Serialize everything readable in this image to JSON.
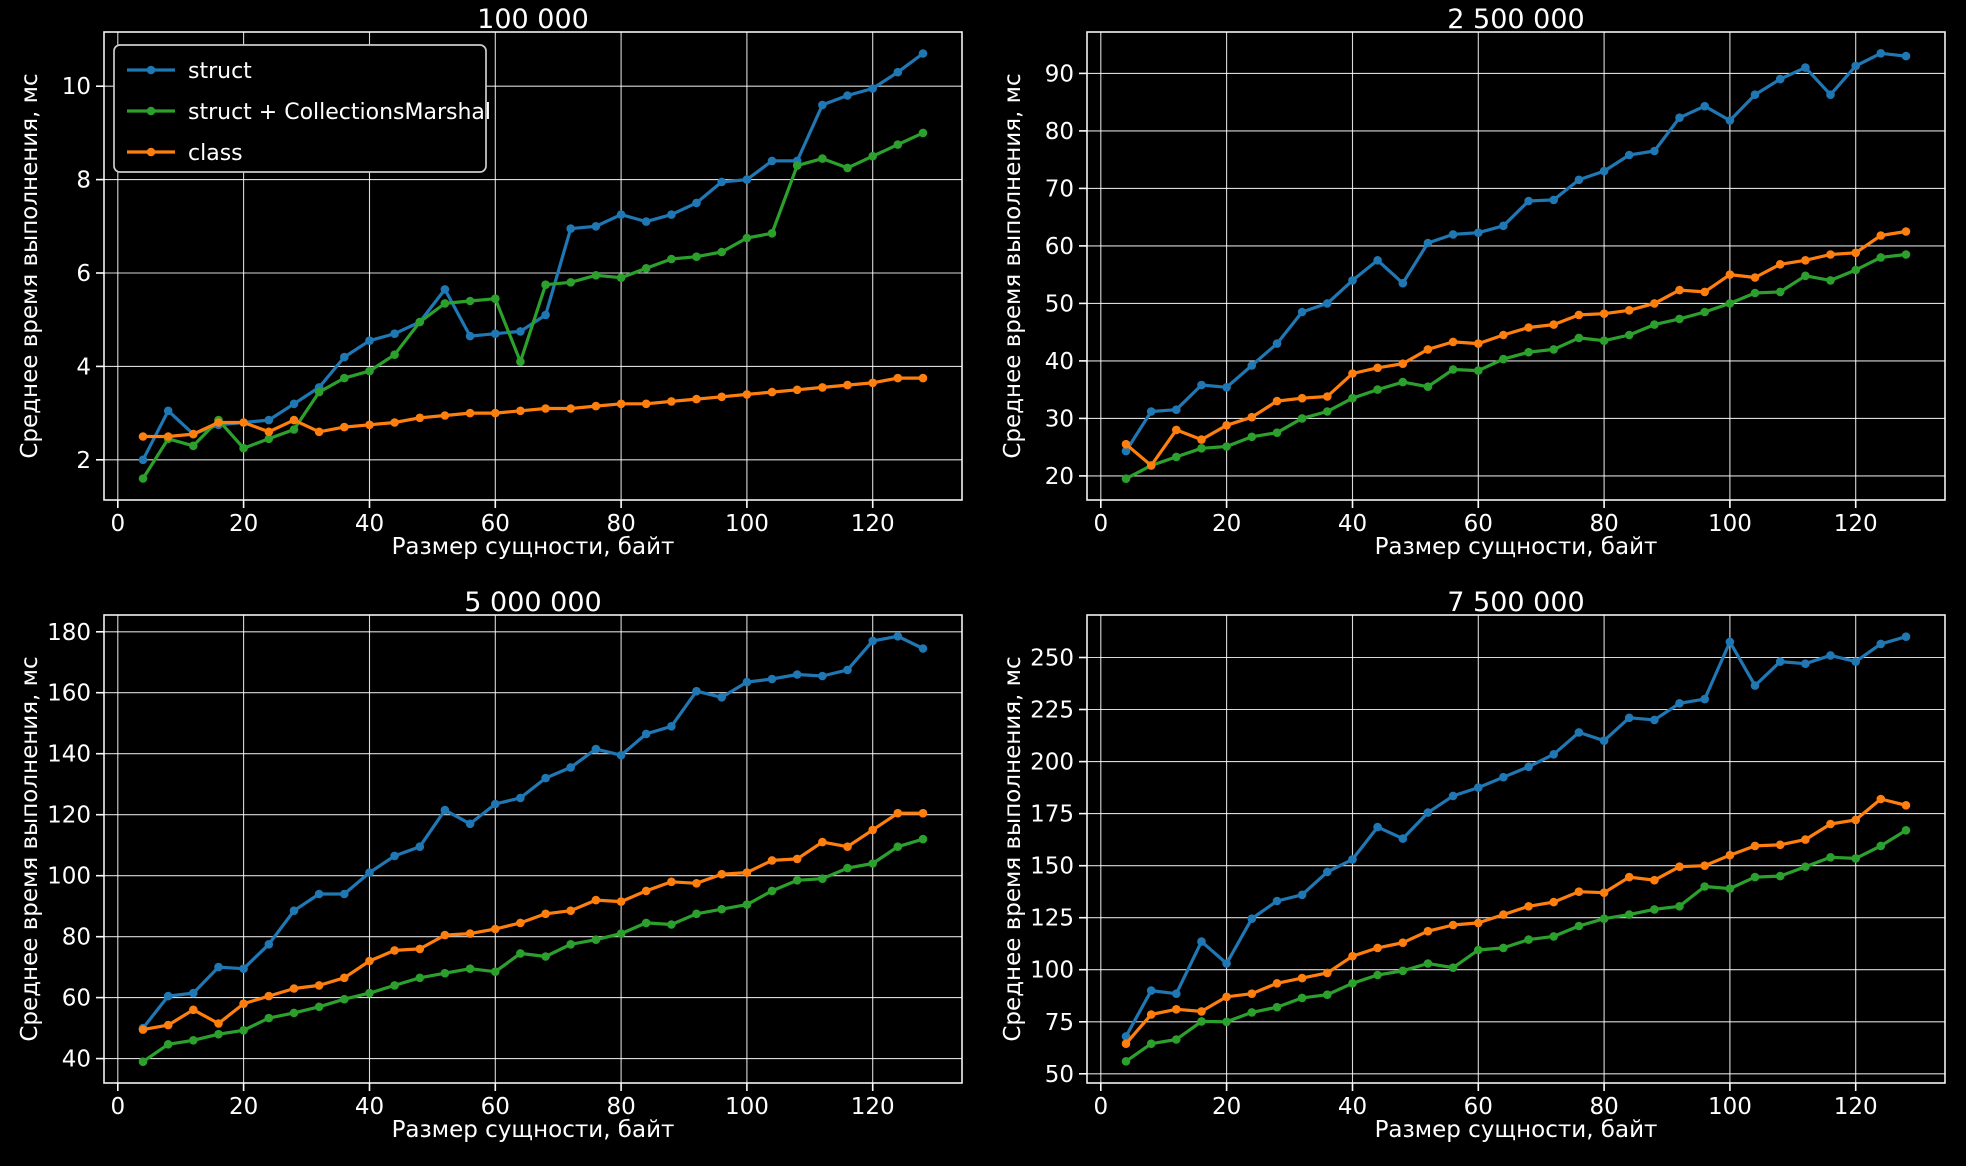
{
  "figure": {
    "background": "#000000",
    "text_color": "#ffffff",
    "grid_color": "#ffffff",
    "spine_color": "#ffffff"
  },
  "shared": {
    "xlabel": "Размер сущности, байт",
    "ylabel": "Среднее время выполнения, мс",
    "x": [
      4,
      8,
      12,
      16,
      20,
      24,
      28,
      32,
      36,
      40,
      44,
      48,
      52,
      56,
      60,
      64,
      68,
      72,
      76,
      80,
      84,
      88,
      92,
      96,
      100,
      104,
      108,
      112,
      116,
      120,
      124,
      128
    ],
    "xticks": [
      0,
      20,
      40,
      60,
      80,
      100,
      120
    ],
    "xlim": [
      -2.2,
      134.2
    ]
  },
  "legend": {
    "items": [
      {
        "label": "struct",
        "color": "#1f77b4"
      },
      {
        "label": "struct + CollectionsMarshal",
        "color": "#2ca02c"
      },
      {
        "label": "class",
        "color": "#ff7f0e"
      }
    ]
  },
  "chart_data": [
    {
      "type": "line",
      "title": "100 000",
      "legend": true,
      "yticks": [
        2,
        4,
        6,
        8,
        10
      ],
      "ylim": [
        1.14,
        11.16
      ],
      "series": [
        {
          "name": "struct",
          "color": "#1f77b4",
          "values": [
            2.0,
            3.05,
            2.55,
            2.75,
            2.8,
            2.85,
            3.2,
            3.55,
            4.2,
            4.55,
            4.7,
            4.95,
            5.65,
            4.65,
            4.7,
            4.75,
            5.1,
            6.95,
            7.0,
            7.25,
            7.1,
            7.25,
            7.5,
            7.95,
            8.0,
            8.4,
            8.4,
            9.6,
            9.8,
            9.95,
            10.3,
            10.7
          ]
        },
        {
          "name": "struct + CollectionsMarshal",
          "color": "#2ca02c",
          "values": [
            1.6,
            2.45,
            2.3,
            2.85,
            2.25,
            2.45,
            2.65,
            3.45,
            3.75,
            3.9,
            4.25,
            4.95,
            5.35,
            5.4,
            5.45,
            4.1,
            5.75,
            5.8,
            5.95,
            5.9,
            6.1,
            6.3,
            6.35,
            6.45,
            6.75,
            6.85,
            8.3,
            8.45,
            8.25,
            8.5,
            8.75,
            9.0
          ]
        },
        {
          "name": "class",
          "color": "#ff7f0e",
          "values": [
            2.5,
            2.5,
            2.55,
            2.8,
            2.8,
            2.6,
            2.85,
            2.6,
            2.7,
            2.75,
            2.8,
            2.9,
            2.95,
            3.0,
            3.0,
            3.05,
            3.1,
            3.1,
            3.15,
            3.2,
            3.2,
            3.25,
            3.3,
            3.35,
            3.4,
            3.45,
            3.5,
            3.55,
            3.6,
            3.65,
            3.75,
            3.75
          ]
        }
      ]
    },
    {
      "type": "line",
      "title": "2 500 000",
      "legend": false,
      "yticks": [
        20,
        30,
        40,
        50,
        60,
        70,
        80,
        90
      ],
      "ylim": [
        15.8,
        97.2
      ],
      "series": [
        {
          "name": "struct",
          "color": "#1f77b4",
          "values": [
            24.3,
            31.2,
            31.5,
            35.8,
            35.4,
            39.2,
            43,
            48.5,
            50,
            54,
            57.5,
            53.5,
            60.5,
            62,
            62.3,
            63.5,
            67.8,
            68,
            71.5,
            73,
            75.8,
            76.5,
            82.3,
            84.3,
            81.8,
            86.3,
            89,
            91,
            86.3,
            91.3,
            93.5,
            93
          ]
        },
        {
          "name": "struct + CollectionsMarshal",
          "color": "#2ca02c",
          "values": [
            19.5,
            21.8,
            23.3,
            24.8,
            25.1,
            26.8,
            27.5,
            30,
            31.2,
            33.5,
            35,
            36.3,
            35.5,
            38.5,
            38.3,
            40.3,
            41.5,
            42,
            44,
            43.5,
            44.5,
            46.3,
            47.3,
            48.5,
            50,
            51.8,
            52,
            54.8,
            54,
            55.8,
            58,
            58.5
          ]
        },
        {
          "name": "class",
          "color": "#ff7f0e",
          "values": [
            25.5,
            21.8,
            28,
            26.3,
            28.8,
            30.2,
            33,
            33.5,
            33.8,
            37.8,
            38.8,
            39.5,
            42,
            43.3,
            43,
            44.5,
            45.8,
            46.3,
            48,
            48.2,
            48.8,
            50,
            52.3,
            52,
            55,
            54.5,
            56.8,
            57.5,
            58.5,
            58.8,
            61.8,
            62.5
          ]
        }
      ]
    },
    {
      "type": "line",
      "title": "5 000 000",
      "legend": false,
      "yticks": [
        40,
        60,
        80,
        100,
        120,
        140,
        160,
        180
      ],
      "ylim": [
        32,
        185.5
      ],
      "series": [
        {
          "name": "struct",
          "color": "#1f77b4",
          "values": [
            50,
            60.5,
            61.5,
            70,
            69.5,
            77.5,
            88.5,
            94,
            94,
            101,
            106.5,
            109.5,
            121.5,
            117,
            123.5,
            125.5,
            132,
            135.5,
            141.5,
            139.5,
            146.5,
            149,
            160.5,
            158.5,
            163.5,
            164.5,
            166,
            165.5,
            167.5,
            177,
            178.5,
            174.5
          ]
        },
        {
          "name": "struct + CollectionsMarshal",
          "color": "#2ca02c",
          "values": [
            39,
            44.7,
            46,
            48,
            49.3,
            53.3,
            55,
            57,
            59.5,
            61.5,
            64,
            66.5,
            68,
            69.5,
            68.5,
            74.5,
            73.5,
            77.5,
            79,
            81,
            84.5,
            84,
            87.5,
            89,
            90.5,
            95,
            98.5,
            99,
            102.5,
            104,
            109.5,
            112
          ]
        },
        {
          "name": "class",
          "color": "#ff7f0e",
          "values": [
            49.5,
            51,
            56,
            51.5,
            58,
            60.5,
            63,
            64,
            66.5,
            72,
            75.5,
            76,
            80.5,
            81,
            82.5,
            84.5,
            87.5,
            88.5,
            92,
            91.5,
            95,
            98,
            97.5,
            100.5,
            101,
            105,
            105.5,
            111,
            109.5,
            115,
            120.5,
            120.5
          ]
        }
      ]
    },
    {
      "type": "line",
      "title": "7 500 000",
      "legend": false,
      "yticks": [
        50,
        75,
        100,
        125,
        150,
        175,
        200,
        225,
        250
      ],
      "ylim": [
        45.6,
        270.4
      ],
      "series": [
        {
          "name": "struct",
          "color": "#1f77b4",
          "values": [
            68,
            90,
            88.5,
            113.5,
            103,
            124.5,
            133,
            136,
            147,
            153,
            168.5,
            163,
            175.5,
            183.5,
            187.5,
            192.5,
            197.5,
            203.5,
            214,
            210,
            221,
            220,
            228,
            230,
            257.5,
            236.5,
            248,
            247,
            251,
            248,
            256.5,
            260
          ]
        },
        {
          "name": "struct + CollectionsMarshal",
          "color": "#2ca02c",
          "values": [
            56,
            64.5,
            66.5,
            75.2,
            75,
            79.5,
            82,
            86.5,
            88,
            93.5,
            97.5,
            99.5,
            103,
            101,
            109.5,
            110.5,
            114.5,
            116,
            121,
            124.5,
            126.5,
            129,
            130.5,
            140,
            139,
            144.5,
            145,
            149.5,
            154,
            153.5,
            159.5,
            167
          ]
        },
        {
          "name": "class",
          "color": "#ff7f0e",
          "values": [
            64.5,
            78.5,
            81,
            80,
            87,
            88.5,
            93.5,
            96,
            98.5,
            106.5,
            110.5,
            113,
            118.5,
            121.5,
            122.5,
            126.5,
            130.5,
            132.5,
            137.5,
            137,
            144.5,
            143,
            149.5,
            150,
            155,
            159.5,
            160,
            162.5,
            170,
            172,
            182,
            179
          ]
        }
      ]
    }
  ]
}
